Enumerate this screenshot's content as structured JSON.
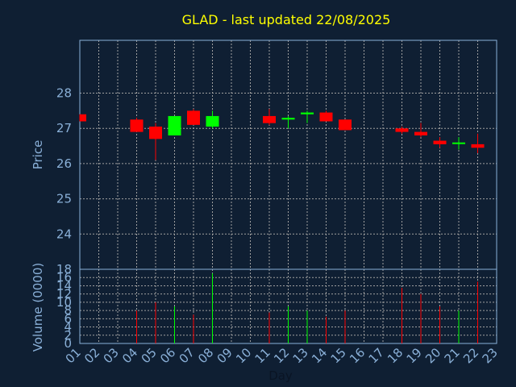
{
  "chart_data": {
    "type": "candlestick",
    "title": "GLAD - last updated 22/08/2025",
    "xlabel": "Day",
    "price_ylabel": "Price",
    "volume_ylabel": "Volume (0000)",
    "x_categories": [
      "01",
      "02",
      "03",
      "04",
      "05",
      "06",
      "07",
      "08",
      "09",
      "10",
      "11",
      "12",
      "13",
      "14",
      "15",
      "16",
      "17",
      "18",
      "19",
      "20",
      "21",
      "22",
      "23"
    ],
    "price_ylim": [
      23.0,
      29.5
    ],
    "price_ticks": [
      24,
      25,
      26,
      27,
      28
    ],
    "volume_ylim": [
      0,
      18
    ],
    "volume_ticks": [
      0,
      2,
      4,
      6,
      8,
      10,
      12,
      14,
      16,
      18
    ],
    "grid": true,
    "colors": {
      "background": "#0f1f33",
      "up": "#00ff00",
      "down": "#ff0000",
      "grid": "#a0a0a0",
      "axis_text": "#8ab0d8",
      "title": "#ffff00"
    },
    "candles": [
      {
        "day": "01",
        "open": 27.4,
        "high": 27.4,
        "low": 27.2,
        "close": 27.2
      },
      {
        "day": "04",
        "open": 27.25,
        "high": 27.3,
        "low": 26.9,
        "close": 26.9
      },
      {
        "day": "05",
        "open": 27.05,
        "high": 27.15,
        "low": 26.1,
        "close": 26.7
      },
      {
        "day": "06",
        "open": 26.8,
        "high": 27.35,
        "low": 26.8,
        "close": 27.35
      },
      {
        "day": "07",
        "open": 27.5,
        "high": 27.55,
        "low": 27.1,
        "close": 27.1
      },
      {
        "day": "08",
        "open": 27.05,
        "high": 27.5,
        "low": 27.0,
        "close": 27.35
      },
      {
        "day": "11",
        "open": 27.35,
        "high": 27.55,
        "low": 27.1,
        "close": 27.15
      },
      {
        "day": "12",
        "open": 27.25,
        "high": 27.35,
        "low": 27.0,
        "close": 27.3
      },
      {
        "day": "13",
        "open": 27.4,
        "high": 27.5,
        "low": 27.15,
        "close": 27.45
      },
      {
        "day": "14",
        "open": 27.45,
        "high": 27.5,
        "low": 27.2,
        "close": 27.2
      },
      {
        "day": "15",
        "open": 27.25,
        "high": 27.25,
        "low": 26.95,
        "close": 26.95
      },
      {
        "day": "18",
        "open": 27.0,
        "high": 27.05,
        "low": 26.85,
        "close": 26.9
      },
      {
        "day": "19",
        "open": 26.9,
        "high": 27.15,
        "low": 26.75,
        "close": 26.8
      },
      {
        "day": "20",
        "open": 26.65,
        "high": 26.75,
        "low": 26.45,
        "close": 26.55
      },
      {
        "day": "21",
        "open": 26.6,
        "high": 26.75,
        "low": 26.4,
        "close": 26.6
      },
      {
        "day": "22",
        "open": 26.55,
        "high": 26.85,
        "low": 26.3,
        "close": 26.45
      }
    ],
    "volume": [
      {
        "day": "04",
        "value": 8,
        "direction": "down"
      },
      {
        "day": "05",
        "value": 10,
        "direction": "down"
      },
      {
        "day": "06",
        "value": 9,
        "direction": "up"
      },
      {
        "day": "07",
        "value": 7,
        "direction": "down"
      },
      {
        "day": "08",
        "value": 17,
        "direction": "up"
      },
      {
        "day": "11",
        "value": 7.5,
        "direction": "down"
      },
      {
        "day": "12",
        "value": 9,
        "direction": "up"
      },
      {
        "day": "13",
        "value": 8,
        "direction": "up"
      },
      {
        "day": "14",
        "value": 6.5,
        "direction": "down"
      },
      {
        "day": "15",
        "value": 8,
        "direction": "down"
      },
      {
        "day": "18",
        "value": 13.5,
        "direction": "down"
      },
      {
        "day": "19",
        "value": 12,
        "direction": "down"
      },
      {
        "day": "20",
        "value": 9,
        "direction": "down"
      },
      {
        "day": "21",
        "value": 8,
        "direction": "up"
      },
      {
        "day": "22",
        "value": 15,
        "direction": "down"
      }
    ]
  }
}
